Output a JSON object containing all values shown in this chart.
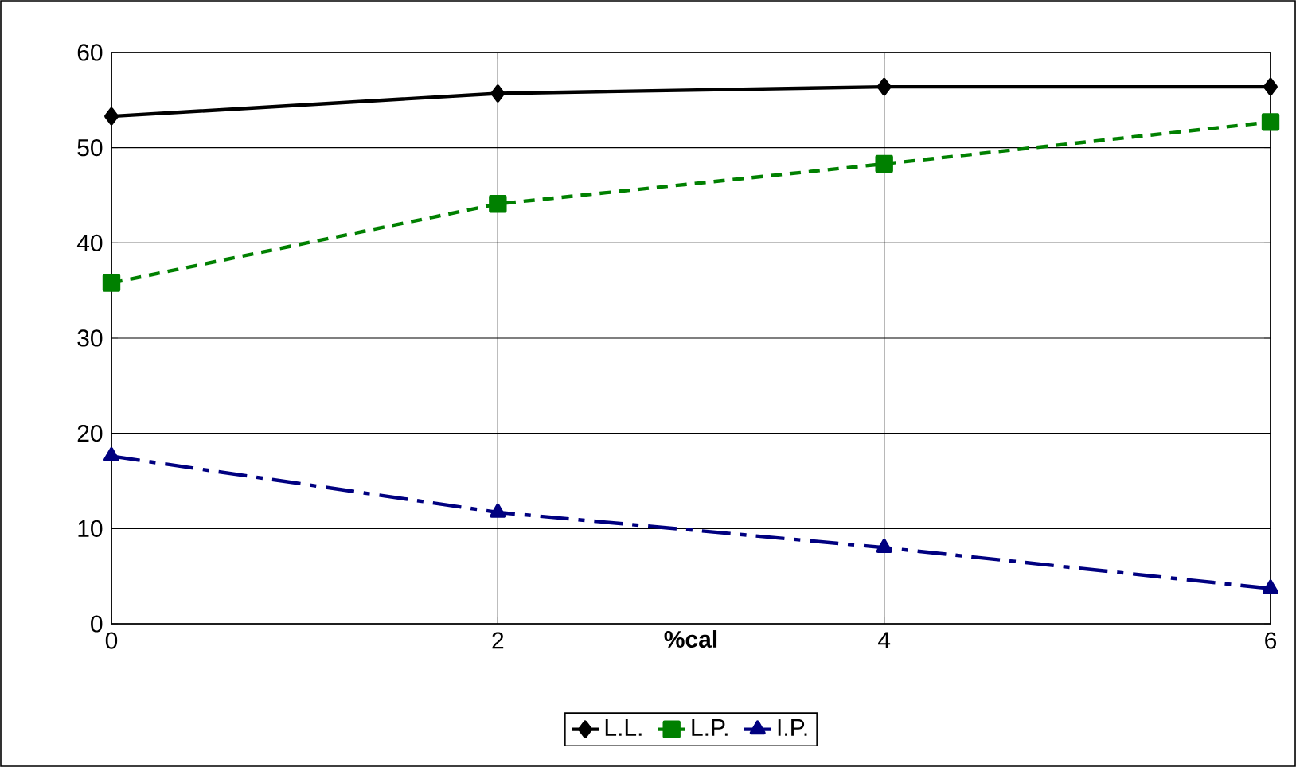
{
  "chart_data": {
    "type": "line",
    "xlabel": "%cal",
    "x": [
      0,
      2,
      4,
      6
    ],
    "series": [
      {
        "name": "L.L.",
        "color": "#000000",
        "values": [
          53.3,
          55.7,
          56.4,
          56.4
        ],
        "marker": "diamond",
        "line_style": "solid"
      },
      {
        "name": "L.P.",
        "color": "#008000",
        "values": [
          35.8,
          44.1,
          48.3,
          52.7
        ],
        "marker": "square",
        "line_style": "dashed"
      },
      {
        "name": "I.P.",
        "color": "#000080",
        "values": [
          17.6,
          11.7,
          8.0,
          3.7
        ],
        "marker": "triangle",
        "line_style": "dashdot"
      }
    ],
    "xlim": [
      0,
      6
    ],
    "xticks": [
      0,
      2,
      4,
      6
    ],
    "ylim": [
      0,
      60
    ],
    "yticks": [
      0,
      10,
      20,
      30,
      40,
      50,
      60
    ],
    "grid": true,
    "legend": "bottom"
  }
}
